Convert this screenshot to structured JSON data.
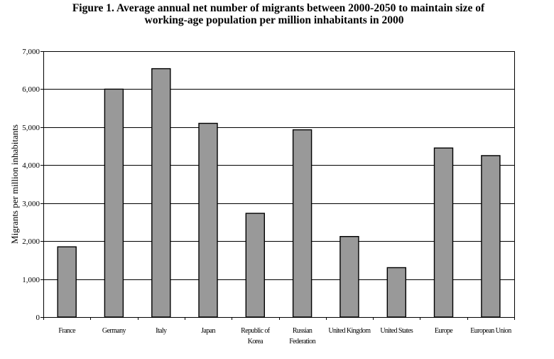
{
  "chart_data": {
    "type": "bar",
    "title_line1": "Figure 1.  Average annual net number of migrants between 2000-2050 to maintain size of",
    "title_line2": "working-age population per million inhabitants in 2000",
    "xlabel": "",
    "ylabel": "Migrants per million inhabitants",
    "ylim": [
      0,
      7000
    ],
    "yticks": [
      0,
      1000,
      2000,
      3000,
      4000,
      5000,
      6000,
      7000
    ],
    "ytick_labels": [
      "0",
      "1,000",
      "2,000",
      "3,000",
      "4,000",
      "5,000",
      "6,000",
      "7,000"
    ],
    "grid": true,
    "legend": "none",
    "bar_color": "#999999",
    "categories": [
      [
        "France"
      ],
      [
        "Germany"
      ],
      [
        "Italy"
      ],
      [
        "Japan"
      ],
      [
        "Republic of",
        "Korea"
      ],
      [
        "Russian",
        "Federation"
      ],
      [
        "United Kingdom"
      ],
      [
        "United States"
      ],
      [
        "Europe"
      ],
      [
        "European Union"
      ]
    ],
    "values": [
      1850,
      6000,
      6540,
      5100,
      2730,
      4930,
      2120,
      1300,
      4450,
      4250
    ]
  }
}
